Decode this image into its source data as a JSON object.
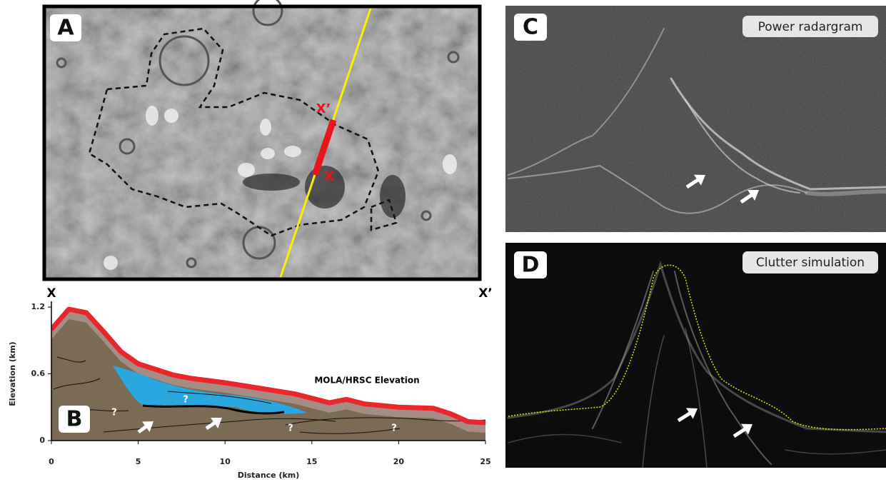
{
  "panels": {
    "a": {
      "label": "A",
      "x_label": "X",
      "x_prime_label": "X’"
    },
    "c": {
      "label": "C",
      "title": "Power radargram"
    },
    "d": {
      "label": "D",
      "title": "Clutter simulation"
    }
  },
  "chart_data": {
    "type": "area",
    "panel_label": "B",
    "start_label": "X",
    "end_label": "X’",
    "xlabel": "Distance (km)",
    "ylabel": "Elevation (km)",
    "annotation": "MOLA/HRSC Elevation",
    "question_marks": [
      "?",
      "?",
      "?",
      "?"
    ],
    "x": [
      0,
      1,
      2,
      3,
      4,
      5,
      6,
      7,
      8,
      10,
      12,
      14,
      15,
      16,
      17,
      18,
      20,
      22,
      23,
      24,
      25
    ],
    "series": [
      {
        "name": "MOLA/HRSC Elevation",
        "color": "#e8262b",
        "values": [
          1.0,
          1.18,
          1.15,
          0.98,
          0.8,
          0.69,
          0.64,
          0.59,
          0.56,
          0.52,
          0.47,
          0.42,
          0.38,
          0.34,
          0.37,
          0.33,
          0.3,
          0.29,
          0.24,
          0.17,
          0.16
        ]
      }
    ],
    "xlim": [
      0,
      25
    ],
    "ylim": [
      0,
      1.2
    ],
    "xticks": [
      0,
      5,
      10,
      15,
      20,
      25
    ],
    "yticks": [
      0,
      0.6,
      1.2
    ]
  }
}
